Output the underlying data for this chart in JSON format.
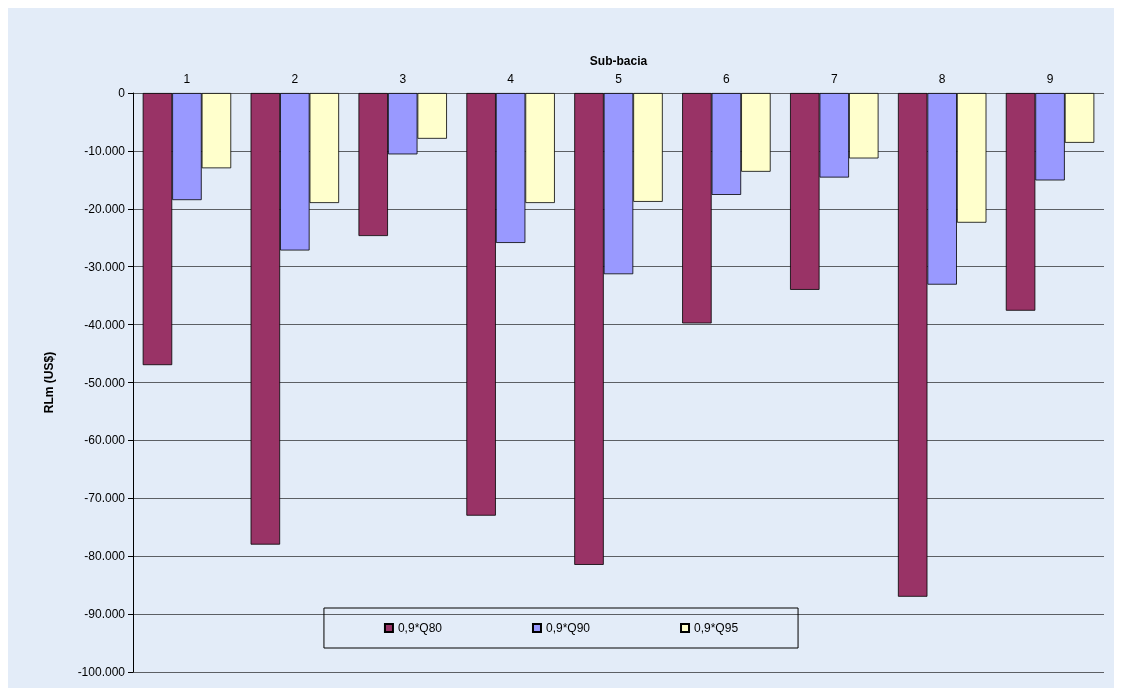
{
  "chart_data": {
    "type": "bar",
    "xlabel": "Sub-bacia",
    "ylabel": "RLm (US$)",
    "categories": [
      "1",
      "2",
      "3",
      "4",
      "5",
      "6",
      "7",
      "8",
      "9"
    ],
    "series": [
      {
        "name": "0,9*Q80",
        "color": "#993366",
        "values": [
          -47000,
          -78000,
          -24700,
          -73000,
          -81500,
          -39800,
          -34000,
          -87000,
          -37600
        ]
      },
      {
        "name": "0,9*Q90",
        "color": "#9999ff",
        "values": [
          -18500,
          -27200,
          -10600,
          -25900,
          -31300,
          -17600,
          -14600,
          -33100,
          -15100
        ]
      },
      {
        "name": "0,9*Q95",
        "color": "#ffffcc",
        "values": [
          -13000,
          -19000,
          -7900,
          -19000,
          -18800,
          -13600,
          -11300,
          -22400,
          -8600
        ]
      }
    ],
    "ylim": [
      -100000,
      0
    ],
    "yticks": [
      {
        "value": -100000,
        "label": "-100.000"
      },
      {
        "value": -90000,
        "label": "-90.000"
      },
      {
        "value": -80000,
        "label": "-80.000"
      },
      {
        "value": -70000,
        "label": "-70.000"
      },
      {
        "value": -60000,
        "label": "-60.000"
      },
      {
        "value": -50000,
        "label": "-50.000"
      },
      {
        "value": -40000,
        "label": "-40.000"
      },
      {
        "value": -30000,
        "label": "-30.000"
      },
      {
        "value": -20000,
        "label": "-20.000"
      },
      {
        "value": -10000,
        "label": "-10.000"
      },
      0
    ],
    "grid": "y",
    "legend": "bottom"
  }
}
